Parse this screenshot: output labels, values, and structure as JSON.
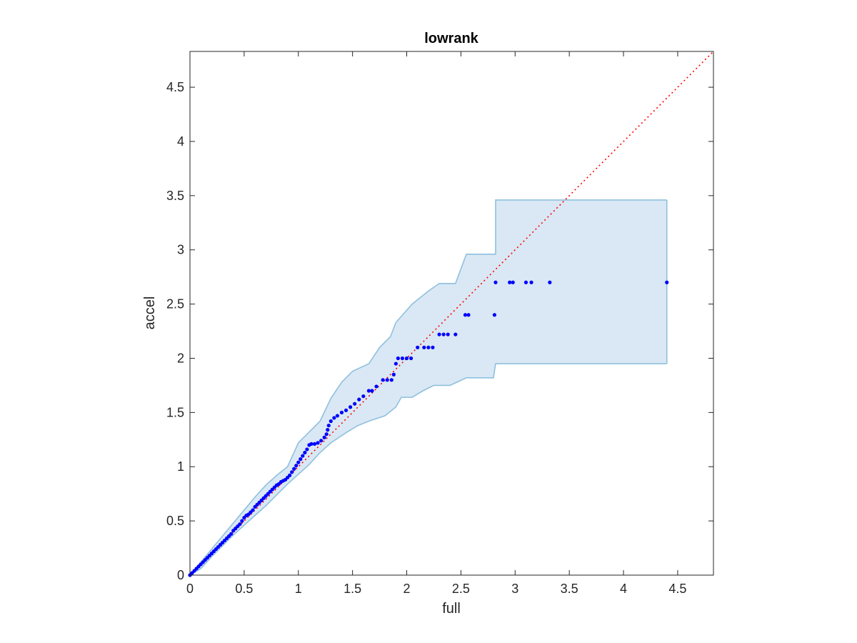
{
  "chart_data": {
    "type": "scatter",
    "title": "lowrank",
    "xlabel": "full",
    "ylabel": "accel",
    "xlim": [
      0,
      4.83
    ],
    "ylim": [
      0,
      4.83
    ],
    "x_ticks": [
      0,
      0.5,
      1,
      1.5,
      2,
      2.5,
      3,
      3.5,
      4,
      4.5
    ],
    "y_ticks": [
      0,
      0.5,
      1,
      1.5,
      2,
      2.5,
      3,
      3.5,
      4,
      4.5
    ],
    "x_tick_labels": [
      "0",
      "0.5",
      "1",
      "1.5",
      "2",
      "2.5",
      "3",
      "3.5",
      "4",
      "4.5"
    ],
    "y_tick_labels": [
      "0",
      "0.5",
      "1",
      "1.5",
      "2",
      "2.5",
      "3",
      "3.5",
      "4",
      "4.5"
    ],
    "grid": false,
    "colors": {
      "points": "#0000ff",
      "reference_line": "#ff0000",
      "band_fill": "#d9e8f4",
      "band_edge": "#8fc0de",
      "axes": "#262626"
    },
    "reference_line": {
      "style": "dotted",
      "x": [
        0,
        4.83
      ],
      "y": [
        0,
        4.83
      ]
    },
    "band": {
      "upper": [
        [
          0,
          0
        ],
        [
          0.1,
          0.12
        ],
        [
          0.2,
          0.24
        ],
        [
          0.3,
          0.36
        ],
        [
          0.4,
          0.48
        ],
        [
          0.5,
          0.6
        ],
        [
          0.6,
          0.72
        ],
        [
          0.7,
          0.83
        ],
        [
          0.8,
          0.92
        ],
        [
          0.9,
          1.0
        ],
        [
          1.0,
          1.22
        ],
        [
          1.1,
          1.32
        ],
        [
          1.2,
          1.42
        ],
        [
          1.3,
          1.63
        ],
        [
          1.4,
          1.78
        ],
        [
          1.5,
          1.88
        ],
        [
          1.65,
          1.95
        ],
        [
          1.75,
          2.1
        ],
        [
          1.85,
          2.2
        ],
        [
          1.9,
          2.33
        ],
        [
          2.05,
          2.5
        ],
        [
          2.2,
          2.62
        ],
        [
          2.3,
          2.69
        ],
        [
          2.45,
          2.69
        ],
        [
          2.55,
          2.96
        ],
        [
          2.82,
          2.96
        ],
        [
          2.82,
          3.46
        ],
        [
          4.4,
          3.46
        ]
      ],
      "lower": [
        [
          0,
          0
        ],
        [
          0.1,
          0.06
        ],
        [
          0.2,
          0.17
        ],
        [
          0.3,
          0.27
        ],
        [
          0.4,
          0.37
        ],
        [
          0.5,
          0.46
        ],
        [
          0.6,
          0.55
        ],
        [
          0.7,
          0.64
        ],
        [
          0.8,
          0.74
        ],
        [
          0.9,
          0.84
        ],
        [
          1.0,
          0.93
        ],
        [
          1.1,
          1.02
        ],
        [
          1.2,
          1.13
        ],
        [
          1.3,
          1.22
        ],
        [
          1.45,
          1.32
        ],
        [
          1.55,
          1.38
        ],
        [
          1.65,
          1.42
        ],
        [
          1.8,
          1.47
        ],
        [
          1.9,
          1.55
        ],
        [
          1.95,
          1.64
        ],
        [
          2.05,
          1.64
        ],
        [
          2.15,
          1.7
        ],
        [
          2.25,
          1.75
        ],
        [
          2.4,
          1.75
        ],
        [
          2.55,
          1.82
        ],
        [
          2.8,
          1.82
        ],
        [
          2.82,
          1.95
        ],
        [
          4.4,
          1.95
        ]
      ]
    },
    "series": [
      {
        "points": [
          [
            0.0,
            0.0
          ],
          [
            0.02,
            0.02
          ],
          [
            0.04,
            0.04
          ],
          [
            0.06,
            0.06
          ],
          [
            0.08,
            0.08
          ],
          [
            0.1,
            0.1
          ],
          [
            0.12,
            0.12
          ],
          [
            0.14,
            0.14
          ],
          [
            0.16,
            0.16
          ],
          [
            0.18,
            0.18
          ],
          [
            0.2,
            0.2
          ],
          [
            0.22,
            0.22
          ],
          [
            0.24,
            0.24
          ],
          [
            0.26,
            0.26
          ],
          [
            0.28,
            0.28
          ],
          [
            0.3,
            0.3
          ],
          [
            0.32,
            0.32
          ],
          [
            0.34,
            0.34
          ],
          [
            0.36,
            0.36
          ],
          [
            0.38,
            0.38
          ],
          [
            0.4,
            0.41
          ],
          [
            0.42,
            0.43
          ],
          [
            0.44,
            0.45
          ],
          [
            0.46,
            0.47
          ],
          [
            0.48,
            0.5
          ],
          [
            0.5,
            0.53
          ],
          [
            0.52,
            0.55
          ],
          [
            0.54,
            0.56
          ],
          [
            0.56,
            0.58
          ],
          [
            0.58,
            0.6
          ],
          [
            0.6,
            0.63
          ],
          [
            0.62,
            0.65
          ],
          [
            0.64,
            0.67
          ],
          [
            0.66,
            0.69
          ],
          [
            0.68,
            0.71
          ],
          [
            0.7,
            0.73
          ],
          [
            0.72,
            0.75
          ],
          [
            0.74,
            0.77
          ],
          [
            0.76,
            0.79
          ],
          [
            0.78,
            0.81
          ],
          [
            0.8,
            0.83
          ],
          [
            0.82,
            0.84
          ],
          [
            0.84,
            0.86
          ],
          [
            0.86,
            0.87
          ],
          [
            0.88,
            0.88
          ],
          [
            0.9,
            0.9
          ],
          [
            0.92,
            0.92
          ],
          [
            0.94,
            0.95
          ],
          [
            0.96,
            0.98
          ],
          [
            0.98,
            1.01
          ],
          [
            1.0,
            1.04
          ],
          [
            1.02,
            1.07
          ],
          [
            1.04,
            1.1
          ],
          [
            1.06,
            1.13
          ],
          [
            1.08,
            1.16
          ],
          [
            1.1,
            1.2
          ],
          [
            1.12,
            1.21
          ],
          [
            1.15,
            1.21
          ],
          [
            1.18,
            1.22
          ],
          [
            1.21,
            1.24
          ],
          [
            1.24,
            1.27
          ],
          [
            1.26,
            1.3
          ],
          [
            1.27,
            1.34
          ],
          [
            1.28,
            1.38
          ],
          [
            1.3,
            1.42
          ],
          [
            1.33,
            1.45
          ],
          [
            1.36,
            1.47
          ],
          [
            1.4,
            1.5
          ],
          [
            1.44,
            1.52
          ],
          [
            1.48,
            1.55
          ],
          [
            1.52,
            1.58
          ],
          [
            1.56,
            1.62
          ],
          [
            1.6,
            1.65
          ],
          [
            1.65,
            1.7
          ],
          [
            1.68,
            1.7
          ],
          [
            1.72,
            1.74
          ],
          [
            1.78,
            1.8
          ],
          [
            1.82,
            1.8
          ],
          [
            1.86,
            1.8
          ],
          [
            1.88,
            1.85
          ],
          [
            1.9,
            1.95
          ],
          [
            1.92,
            2.0
          ],
          [
            1.96,
            2.0
          ],
          [
            2.0,
            2.0
          ],
          [
            2.04,
            2.0
          ],
          [
            2.1,
            2.1
          ],
          [
            2.16,
            2.1
          ],
          [
            2.2,
            2.1
          ],
          [
            2.24,
            2.1
          ],
          [
            2.3,
            2.22
          ],
          [
            2.34,
            2.22
          ],
          [
            2.38,
            2.22
          ],
          [
            2.45,
            2.22
          ],
          [
            2.54,
            2.4
          ],
          [
            2.57,
            2.4
          ],
          [
            2.81,
            2.4
          ],
          [
            2.82,
            2.7
          ],
          [
            2.95,
            2.7
          ],
          [
            2.98,
            2.7
          ],
          [
            3.1,
            2.7
          ],
          [
            3.15,
            2.7
          ],
          [
            3.32,
            2.7
          ],
          [
            4.4,
            2.7
          ]
        ]
      }
    ]
  }
}
